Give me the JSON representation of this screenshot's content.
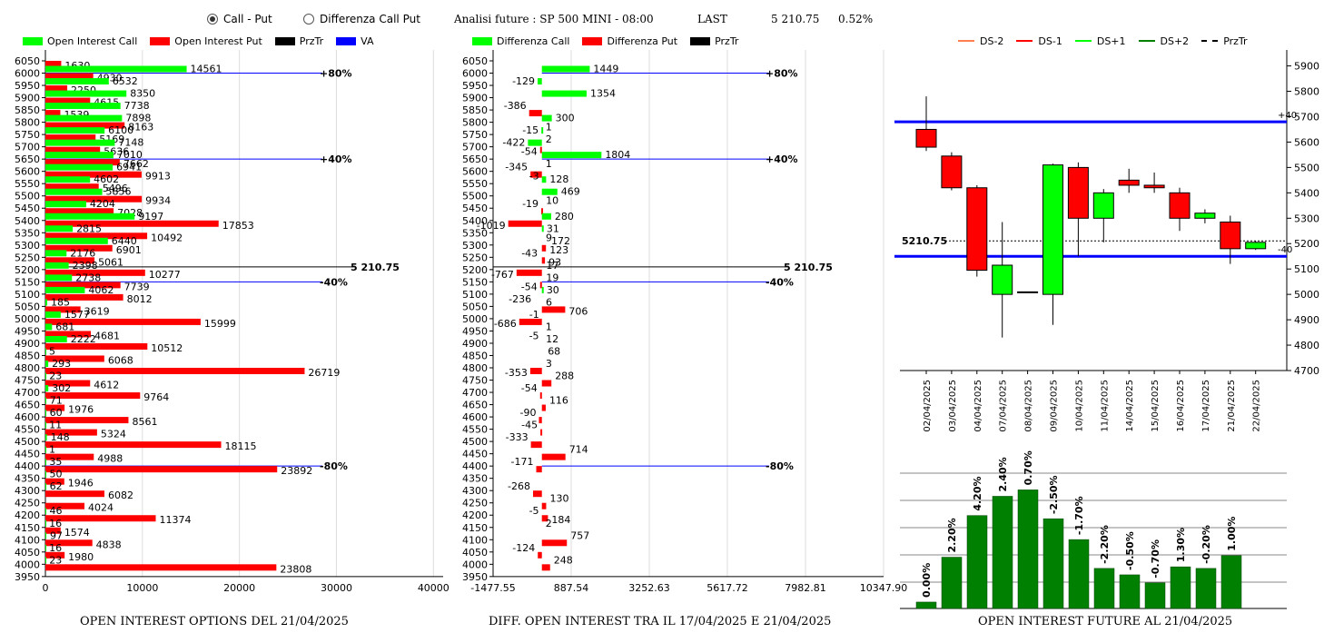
{
  "header": {
    "radio_call_put": "Call - Put",
    "radio_diff": "Differenza Call Put",
    "title": "Analisi future : SP 500 MINI - 08:00",
    "last_label": "LAST",
    "last_value": "5 210.75",
    "last_pct": "0.52%"
  },
  "colors": {
    "green": "#00ff00",
    "red": "#ff0000",
    "blue": "#0000ff",
    "dark_green": "#008000",
    "orange": "#ff7f50"
  },
  "legend_oi": [
    {
      "label": "Open Interest Call",
      "color": "#00ff00"
    },
    {
      "label": "Open Interest Put",
      "color": "#ff0000"
    },
    {
      "label": "PrzTr",
      "color": "#000000"
    },
    {
      "label": "VA",
      "color": "#0000ff"
    }
  ],
  "legend_diff": [
    {
      "label": "Differenza Call",
      "color": "#00ff00"
    },
    {
      "label": "Differenza Put",
      "color": "#ff0000"
    },
    {
      "label": "PrzTr",
      "color": "#000000"
    }
  ],
  "legend_candle": [
    {
      "label": "DS-2",
      "color": "#ff7f50",
      "style": "line"
    },
    {
      "label": "DS-1",
      "color": "#ff0000",
      "style": "line"
    },
    {
      "label": "DS+1",
      "color": "#00ff00",
      "style": "line"
    },
    {
      "label": "DS+2",
      "color": "#008000",
      "style": "line"
    },
    {
      "label": "PrzTr",
      "color": "#000000",
      "style": "dashed"
    }
  ],
  "footers": {
    "oi": "OPEN INTEREST OPTIONS DEL 21/04/2025",
    "diff": "DIFF. OPEN INTEREST TRA IL 17/04/2025 E 21/04/2025",
    "future": "OPEN INTEREST FUTURE AL 21/04/2025"
  },
  "chart_data": [
    {
      "type": "bar",
      "orientation": "horizontal",
      "strikes": [
        6050,
        6000,
        5950,
        5900,
        5850,
        5800,
        5750,
        5700,
        5650,
        5600,
        5550,
        5500,
        5450,
        5400,
        5350,
        5300,
        5250,
        5200,
        5150,
        5100,
        5050,
        5000,
        4950,
        4900,
        4850,
        4800,
        4750,
        4700,
        4650,
        4600,
        4550,
        4500,
        4450,
        4400,
        4350,
        4300,
        4250,
        4200,
        4150,
        4100,
        4050,
        4000,
        3950
      ],
      "series": [
        {
          "name": "Open Interest Call",
          "values": [
            null,
            14561,
            6532,
            8350,
            7738,
            7898,
            6100,
            7148,
            7010,
            6941,
            4602,
            5856,
            4204,
            9197,
            2815,
            6440,
            2176,
            2398,
            2738,
            4062,
            185,
            1577,
            681,
            2222,
            5,
            293,
            23,
            302,
            71,
            60,
            11,
            148,
            1,
            35,
            50,
            62,
            null,
            46,
            16,
            97,
            16,
            23,
            null
          ]
        },
        {
          "name": "Open Interest Put",
          "values": [
            1630,
            4930,
            2250,
            4615,
            1539,
            8163,
            5169,
            5636,
            7662,
            9913,
            5496,
            9934,
            7028,
            17853,
            10492,
            6901,
            5061,
            10277,
            7739,
            8012,
            3619,
            15999,
            4681,
            10512,
            6068,
            26719,
            4612,
            9764,
            1976,
            8561,
            5324,
            18115,
            4988,
            23892,
            1946,
            6082,
            4024,
            11374,
            1574,
            4838,
            1980,
            23808,
            null
          ]
        }
      ],
      "price_line": {
        "label": "5 210.75",
        "strike": 5210.75
      },
      "va_lines": [
        {
          "label": "+80%",
          "strike": 6000
        },
        {
          "label": "+40%",
          "strike": 5650
        },
        {
          "label": "-40%",
          "strike": 5150
        },
        {
          "label": "-80%",
          "strike": 4400
        }
      ],
      "xticks": [
        0,
        10000,
        20000,
        30000,
        40000
      ],
      "xlim": [
        0,
        41000
      ]
    },
    {
      "type": "bar",
      "orientation": "horizontal",
      "strikes": [
        6050,
        6000,
        5950,
        5900,
        5850,
        5800,
        5750,
        5700,
        5650,
        5600,
        5550,
        5500,
        5450,
        5400,
        5350,
        5300,
        5250,
        5200,
        5150,
        5100,
        5050,
        5000,
        4950,
        4900,
        4850,
        4800,
        4750,
        4700,
        4650,
        4600,
        4550,
        4500,
        4450,
        4400,
        4350,
        4300,
        4250,
        4200,
        4150,
        4100,
        4050,
        4000,
        3950
      ],
      "diff_values": [
        {
          "strike": 6000,
          "labels": [
            1449
          ],
          "bars": [
            {
              "v": 1449,
              "c": "g"
            }
          ]
        },
        {
          "strike": 5950,
          "labels": [
            -129
          ],
          "bars": [
            {
              "v": -129,
              "c": "g"
            }
          ]
        },
        {
          "strike": 5900,
          "labels": [
            1354
          ],
          "bars": [
            {
              "v": 1354,
              "c": "g"
            }
          ]
        },
        {
          "strike": 5850,
          "labels": [
            -386
          ],
          "bars": [
            {
              "v": -386,
              "c": "r"
            }
          ]
        },
        {
          "strike": 5800,
          "labels": [
            300,
            1
          ],
          "bars": [
            {
              "v": 300,
              "c": "g"
            }
          ]
        },
        {
          "strike": 5750,
          "labels": [
            -15,
            2
          ],
          "bars": [
            {
              "v": -15,
              "c": "g"
            }
          ]
        },
        {
          "strike": 5700,
          "labels": [
            -422,
            -54
          ],
          "bars": [
            {
              "v": -422,
              "c": "g"
            },
            {
              "v": -54,
              "c": "r"
            }
          ]
        },
        {
          "strike": 5650,
          "labels": [
            1804,
            1
          ],
          "bars": [
            {
              "v": 1804,
              "c": "g"
            }
          ]
        },
        {
          "strike": 5600,
          "labels": [
            -345,
            -3
          ],
          "bars": [
            {
              "v": -345,
              "c": "r"
            }
          ]
        },
        {
          "strike": 5550,
          "labels": [
            128
          ],
          "bars": [
            {
              "v": 128,
              "c": "g"
            }
          ]
        },
        {
          "strike": 5500,
          "labels": [
            469,
            10
          ],
          "bars": [
            {
              "v": 469,
              "c": "g"
            }
          ]
        },
        {
          "strike": 5450,
          "labels": [
            -19
          ],
          "bars": [
            {
              "v": -19,
              "c": "r"
            }
          ]
        },
        {
          "strike": 5400,
          "labels": [
            280,
            -1019
          ],
          "bars": [
            {
              "v": 280,
              "c": "g"
            },
            {
              "v": -1019,
              "c": "r"
            }
          ]
        },
        {
          "strike": 5350,
          "labels": [
            31,
            9
          ],
          "bars": [
            {
              "v": 31,
              "c": "g"
            }
          ]
        },
        {
          "strike": 5300,
          "labels": [
            172,
            123
          ],
          "bars": [
            {
              "v": 123,
              "c": "r"
            }
          ]
        },
        {
          "strike": 5250,
          "labels": [
            -43,
            93
          ],
          "bars": [
            {
              "v": 93,
              "c": "r"
            }
          ]
        },
        {
          "strike": 5200,
          "labels": [
            17,
            -767
          ],
          "bars": [
            {
              "v": -767,
              "c": "r"
            }
          ]
        },
        {
          "strike": 5150,
          "labels": [
            19,
            -54
          ],
          "bars": [
            {
              "v": -54,
              "c": "r"
            }
          ]
        },
        {
          "strike": 5100,
          "labels": [
            30,
            -236
          ],
          "bars": [
            {
              "v": 30,
              "c": "g"
            }
          ]
        },
        {
          "strike": 5050,
          "labels": [
            6,
            706
          ],
          "bars": [
            {
              "v": 706,
              "c": "r"
            }
          ]
        },
        {
          "strike": 5000,
          "labels": [
            -1,
            -686
          ],
          "bars": [
            {
              "v": -686,
              "c": "r"
            }
          ]
        },
        {
          "strike": 4950,
          "labels": [
            1,
            -5
          ],
          "bars": []
        },
        {
          "strike": 4900,
          "labels": [
            12
          ],
          "bars": []
        },
        {
          "strike": 4850,
          "labels": [
            68
          ],
          "bars": []
        },
        {
          "strike": 4800,
          "labels": [
            3,
            -353
          ],
          "bars": [
            {
              "v": -353,
              "c": "r"
            }
          ]
        },
        {
          "strike": 4750,
          "labels": [
            288
          ],
          "bars": [
            {
              "v": 288,
              "c": "r"
            }
          ]
        },
        {
          "strike": 4700,
          "labels": [
            -54
          ],
          "bars": [
            {
              "v": -54,
              "c": "r"
            }
          ]
        },
        {
          "strike": 4650,
          "labels": [
            116
          ],
          "bars": [
            {
              "v": 116,
              "c": "r"
            }
          ]
        },
        {
          "strike": 4600,
          "labels": [
            -90
          ],
          "bars": [
            {
              "v": -90,
              "c": "r"
            }
          ]
        },
        {
          "strike": 4550,
          "labels": [
            -45
          ],
          "bars": [
            {
              "v": -45,
              "c": "r"
            }
          ]
        },
        {
          "strike": 4500,
          "labels": [
            -333
          ],
          "bars": [
            {
              "v": -333,
              "c": "r"
            }
          ]
        },
        {
          "strike": 4450,
          "labels": [
            714
          ],
          "bars": [
            {
              "v": 714,
              "c": "r"
            }
          ]
        },
        {
          "strike": 4400,
          "labels": [
            -171
          ],
          "bars": [
            {
              "v": -171,
              "c": "r"
            }
          ]
        },
        {
          "strike": 4300,
          "labels": [
            -268
          ],
          "bars": [
            {
              "v": -268,
              "c": "r"
            }
          ]
        },
        {
          "strike": 4250,
          "labels": [
            130
          ],
          "bars": [
            {
              "v": 130,
              "c": "r"
            }
          ]
        },
        {
          "strike": 4200,
          "labels": [
            -5,
            184
          ],
          "bars": [
            {
              "v": 184,
              "c": "r"
            }
          ]
        },
        {
          "strike": 4150,
          "labels": [
            2
          ],
          "bars": []
        },
        {
          "strike": 4100,
          "labels": [
            757
          ],
          "bars": [
            {
              "v": 757,
              "c": "r"
            }
          ]
        },
        {
          "strike": 4050,
          "labels": [
            -124
          ],
          "bars": [
            {
              "v": -124,
              "c": "r"
            }
          ]
        },
        {
          "strike": 4000,
          "labels": [
            248
          ],
          "bars": [
            {
              "v": 248,
              "c": "r"
            }
          ]
        }
      ],
      "price_line": {
        "label": "5 210.75",
        "strike": 5210.75
      },
      "va_lines": [
        {
          "label": "+80%",
          "strike": 6000
        },
        {
          "label": "+40%",
          "strike": 5650
        },
        {
          "label": "-40%",
          "strike": 5150
        },
        {
          "label": "-80%",
          "strike": 4400
        }
      ],
      "xticks": [
        -1477.55,
        887.54,
        3252.63,
        5617.72,
        7982.81,
        10347.9
      ],
      "xlim": [
        -1477.55,
        10347.9
      ]
    },
    {
      "type": "candlestick",
      "dates": [
        "02/04/2025",
        "03/04/2025",
        "04/04/2025",
        "07/04/2025",
        "08/04/2025",
        "09/04/2025",
        "10/04/2025",
        "11/04/2025",
        "14/04/2025",
        "15/04/2025",
        "16/04/2025",
        "17/04/2025",
        "21/04/2025",
        "22/04/2025"
      ],
      "candles": [
        {
          "o": 5650,
          "h": 5780,
          "l": 5565,
          "c": 5580,
          "color": "#ff0000"
        },
        {
          "o": 5545,
          "h": 5560,
          "l": 5410,
          "c": 5420,
          "color": "#ff0000"
        },
        {
          "o": 5420,
          "h": 5430,
          "l": 5070,
          "c": 5095,
          "color": "#ff0000"
        },
        {
          "o": 5000,
          "h": 5285,
          "l": 4830,
          "c": 5115,
          "color": "#00ff00"
        },
        {
          "o": 5010,
          "h": 5010,
          "l": 5010,
          "c": 5010,
          "color": "#000000"
        },
        {
          "o": 5000,
          "h": 5515,
          "l": 4880,
          "c": 5510,
          "color": "#00ff00"
        },
        {
          "o": 5500,
          "h": 5520,
          "l": 5150,
          "c": 5300,
          "color": "#ff0000"
        },
        {
          "o": 5300,
          "h": 5415,
          "l": 5205,
          "c": 5400,
          "color": "#00ff00"
        },
        {
          "o": 5450,
          "h": 5495,
          "l": 5400,
          "c": 5430,
          "color": "#ff0000"
        },
        {
          "o": 5430,
          "h": 5480,
          "l": 5400,
          "c": 5420,
          "color": "#ff0000"
        },
        {
          "o": 5400,
          "h": 5420,
          "l": 5250,
          "c": 5300,
          "color": "#ff0000"
        },
        {
          "o": 5300,
          "h": 5335,
          "l": 5280,
          "c": 5320,
          "color": "#00ff00"
        },
        {
          "o": 5285,
          "h": 5310,
          "l": 5120,
          "c": 5180,
          "color": "#ff0000"
        },
        {
          "o": 5180,
          "h": 5210,
          "l": 5175,
          "c": 5205,
          "color": "#00ff00"
        }
      ],
      "yticks": [
        4700,
        4800,
        4900,
        5000,
        5100,
        5200,
        5300,
        5400,
        5500,
        5600,
        5700,
        5800,
        5900
      ],
      "ylim": [
        4700,
        5920
      ],
      "price_line": {
        "label": "5210.75",
        "value": 5210.75
      },
      "bands": [
        {
          "value": 5680,
          "label": "+40"
        },
        {
          "value": 5150,
          "label": "-40"
        }
      ]
    },
    {
      "type": "bar",
      "labels": [
        "0.00%",
        "2.20%",
        "4.20%",
        "2.40%",
        "0.70%",
        "-2.50%",
        "-1.70%",
        "-2.20%",
        "-0.50%",
        "-0.70%",
        "1.30%",
        "-0.20%",
        "1.00%"
      ],
      "values": [
        0.4,
        3.2,
        5.8,
        7.0,
        7.4,
        5.6,
        4.3,
        2.5,
        2.1,
        1.6,
        2.6,
        2.5,
        3.3
      ],
      "color": "#008000",
      "ylim": [
        0,
        8.5
      ]
    }
  ]
}
